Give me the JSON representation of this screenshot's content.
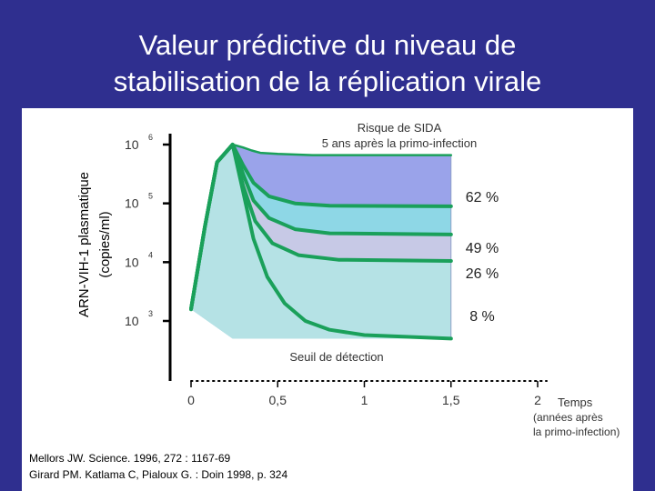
{
  "slide": {
    "title_line1": "Valeur prédictive du niveau de",
    "title_line2": "stabilisation de la réplication virale",
    "background_color": "#2f2f8f",
    "title_color": "#ffffff"
  },
  "chart_data": {
    "type": "line",
    "title": "",
    "ylabel_line1": "ARN-VIH-1 plasmatique",
    "ylabel_line2": "(copies/ml)",
    "y_scale": "log10",
    "y_ticks": [
      {
        "base": "10",
        "exp": "6",
        "value": 1000000
      },
      {
        "base": "10",
        "exp": "5",
        "value": 100000
      },
      {
        "base": "10",
        "exp": "4",
        "value": 10000
      },
      {
        "base": "10",
        "exp": "3",
        "value": 1000
      }
    ],
    "x_ticks": [
      "0",
      "0,5",
      "1",
      "1,5",
      "2"
    ],
    "xlim": [
      0,
      2
    ],
    "xlabel_lines": [
      "Temps",
      "(années après",
      "la primo-infection)"
    ],
    "risk_title_lines": [
      "Risque de SIDA",
      "5 ans après la primo-infection"
    ],
    "detection_label": "Seuil de détection",
    "curve_color": "#1aa05a",
    "series": [
      {
        "plateau_log10": 5.82,
        "risk_label": "62 %",
        "fill_color": "#9aa3ea",
        "points": [
          [
            0,
            3.2
          ],
          [
            0.08,
            4.6
          ],
          [
            0.15,
            5.7
          ],
          [
            0.24,
            6.0
          ],
          [
            0.3,
            5.95
          ],
          [
            0.35,
            5.9
          ],
          [
            0.4,
            5.86
          ],
          [
            0.5,
            5.84
          ],
          [
            0.7,
            5.82
          ],
          [
            1.5,
            5.82
          ]
        ]
      },
      {
        "plateau_log10": 4.95,
        "risk_label": "",
        "fill_color": "#8ed7e6",
        "points": [
          [
            0,
            3.2
          ],
          [
            0.08,
            4.6
          ],
          [
            0.15,
            5.7
          ],
          [
            0.24,
            6.0
          ],
          [
            0.3,
            5.65
          ],
          [
            0.36,
            5.35
          ],
          [
            0.45,
            5.12
          ],
          [
            0.6,
            5.0
          ],
          [
            0.8,
            4.96
          ],
          [
            1.5,
            4.95
          ]
        ]
      },
      {
        "plateau_log10": 4.47,
        "risk_label": "49 %",
        "fill_color": "#c7c9e6",
        "points": [
          [
            0,
            3.2
          ],
          [
            0.08,
            4.6
          ],
          [
            0.15,
            5.7
          ],
          [
            0.24,
            6.0
          ],
          [
            0.3,
            5.5
          ],
          [
            0.36,
            5.05
          ],
          [
            0.45,
            4.75
          ],
          [
            0.6,
            4.56
          ],
          [
            0.8,
            4.49
          ],
          [
            1.5,
            4.47
          ]
        ]
      },
      {
        "plateau_log10": 4.02,
        "risk_label": "26 %",
        "fill_color": "#b5e2e5",
        "points": [
          [
            0,
            3.2
          ],
          [
            0.08,
            4.6
          ],
          [
            0.15,
            5.7
          ],
          [
            0.24,
            6.0
          ],
          [
            0.3,
            5.3
          ],
          [
            0.37,
            4.7
          ],
          [
            0.47,
            4.32
          ],
          [
            0.62,
            4.12
          ],
          [
            0.85,
            4.04
          ],
          [
            1.5,
            4.02
          ]
        ]
      },
      {
        "plateau_log10": 2.7,
        "risk_label": "8 %",
        "fill_color": "#b5e2e5",
        "points": [
          [
            0,
            3.2
          ],
          [
            0.08,
            4.6
          ],
          [
            0.15,
            5.7
          ],
          [
            0.24,
            6.0
          ],
          [
            0.3,
            5.2
          ],
          [
            0.36,
            4.4
          ],
          [
            0.44,
            3.75
          ],
          [
            0.54,
            3.3
          ],
          [
            0.66,
            3.0
          ],
          [
            0.8,
            2.85
          ],
          [
            1.0,
            2.76
          ],
          [
            1.5,
            2.7
          ]
        ]
      }
    ]
  },
  "references": [
    "Mellors JW. Science. 1996, 272 : 1167-69",
    "Girard PM. Katlama C, Pialoux G. : Doin 1998, p. 324"
  ]
}
